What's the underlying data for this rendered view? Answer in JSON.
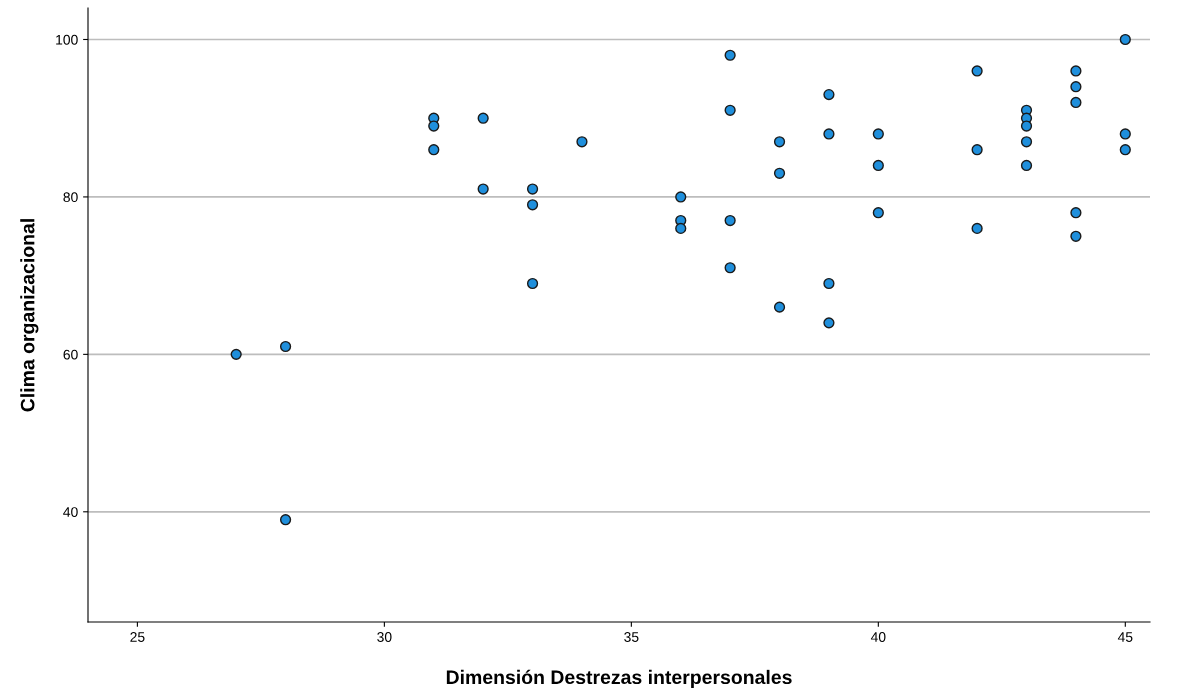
{
  "chart_data": {
    "type": "scatter",
    "xlabel": "Dimensión Destrezas interpersonales",
    "ylabel": "Clima organizacional",
    "x": [
      27,
      28,
      28,
      31,
      31,
      31,
      32,
      32,
      33,
      33,
      33,
      34,
      36,
      36,
      36,
      37,
      37,
      37,
      37,
      38,
      38,
      38,
      39,
      39,
      39,
      39,
      40,
      40,
      40,
      42,
      42,
      42,
      43,
      43,
      43,
      43,
      43,
      44,
      44,
      44,
      44,
      44,
      45,
      45,
      45
    ],
    "values": [
      60,
      61,
      39,
      90,
      89,
      86,
      90,
      81,
      81,
      79,
      69,
      87,
      80,
      77,
      76,
      98,
      91,
      77,
      71,
      87,
      83,
      66,
      93,
      88,
      69,
      64,
      88,
      84,
      78,
      96,
      86,
      76,
      91,
      90,
      89,
      87,
      84,
      96,
      94,
      92,
      78,
      75,
      100,
      88,
      86
    ],
    "color": "#1f8fdc",
    "marker": "circle",
    "grid": "y",
    "xlim": [
      24,
      45.5
    ],
    "xticks": [
      25,
      30,
      35,
      40,
      45
    ],
    "ylim": [
      26,
      104
    ],
    "yticks": [
      40,
      60,
      80,
      100
    ]
  }
}
